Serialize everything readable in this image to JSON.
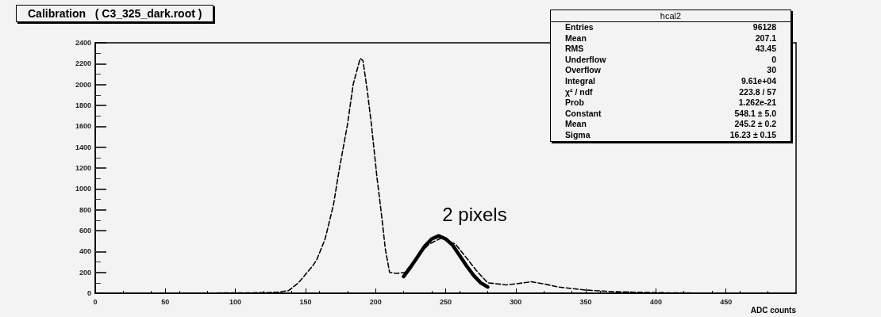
{
  "chart_data": {
    "type": "line",
    "title": "Calibration   ( C3_325_dark.root )",
    "xlabel": "ADC counts",
    "annotations": [
      "2 pixels",
      "hcal2",
      "Entries",
      "96128",
      "Mean",
      "207.1",
      "RMS",
      "43.45",
      "Underflow",
      "0",
      "Overflow",
      "30",
      "Integral",
      "9.61e+04",
      "χ² / ndf",
      "223.8 / 57",
      "Prob",
      "1.262e-21",
      "Constant",
      "548.1 ± 5.0",
      "Mean",
      "245.2 ± 0.2",
      "Sigma",
      "16.23 ± 0.15"
    ],
    "series": [
      {
        "color": "#000000",
        "line_style": "dashed",
        "x": [
          0,
          50,
          80,
          100,
          120,
          130,
          138,
          145,
          150,
          155,
          158,
          164,
          170,
          174,
          180,
          184,
          189,
          191,
          194,
          197,
          201,
          204,
          207,
          210,
          215,
          221,
          228,
          238,
          247,
          257,
          263,
          273,
          280,
          293,
          300,
          311,
          320,
          330,
          350,
          370,
          400,
          450,
          500
        ],
        "values": [
          0,
          0,
          2,
          3,
          5,
          10,
          25,
          100,
          180,
          260,
          320,
          520,
          850,
          1180,
          1620,
          2000,
          2250,
          2230,
          1950,
          1620,
          1110,
          780,
          420,
          200,
          190,
          200,
          320,
          470,
          530,
          470,
          370,
          200,
          100,
          80,
          90,
          110,
          90,
          60,
          30,
          15,
          5,
          0,
          0
        ]
      },
      {
        "color": "#000000",
        "line_style": "solid",
        "x": [
          220,
          225,
          230,
          235,
          240,
          245,
          250,
          255,
          260,
          265,
          270,
          275,
          280
        ],
        "values": [
          160,
          250,
          350,
          450,
          520,
          550,
          520,
          460,
          360,
          260,
          170,
          100,
          60
        ]
      }
    ],
    "xlim": [
      0,
      500
    ],
    "xticks": [
      0,
      50,
      100,
      150,
      200,
      250,
      300,
      350,
      400,
      450
    ],
    "ylim": [
      0,
      2400
    ],
    "yticks": [
      0,
      200,
      400,
      600,
      800,
      1000,
      1200,
      1400,
      1600,
      1800,
      2000,
      2200,
      2400
    ],
    "grid": false,
    "marker": "none"
  }
}
